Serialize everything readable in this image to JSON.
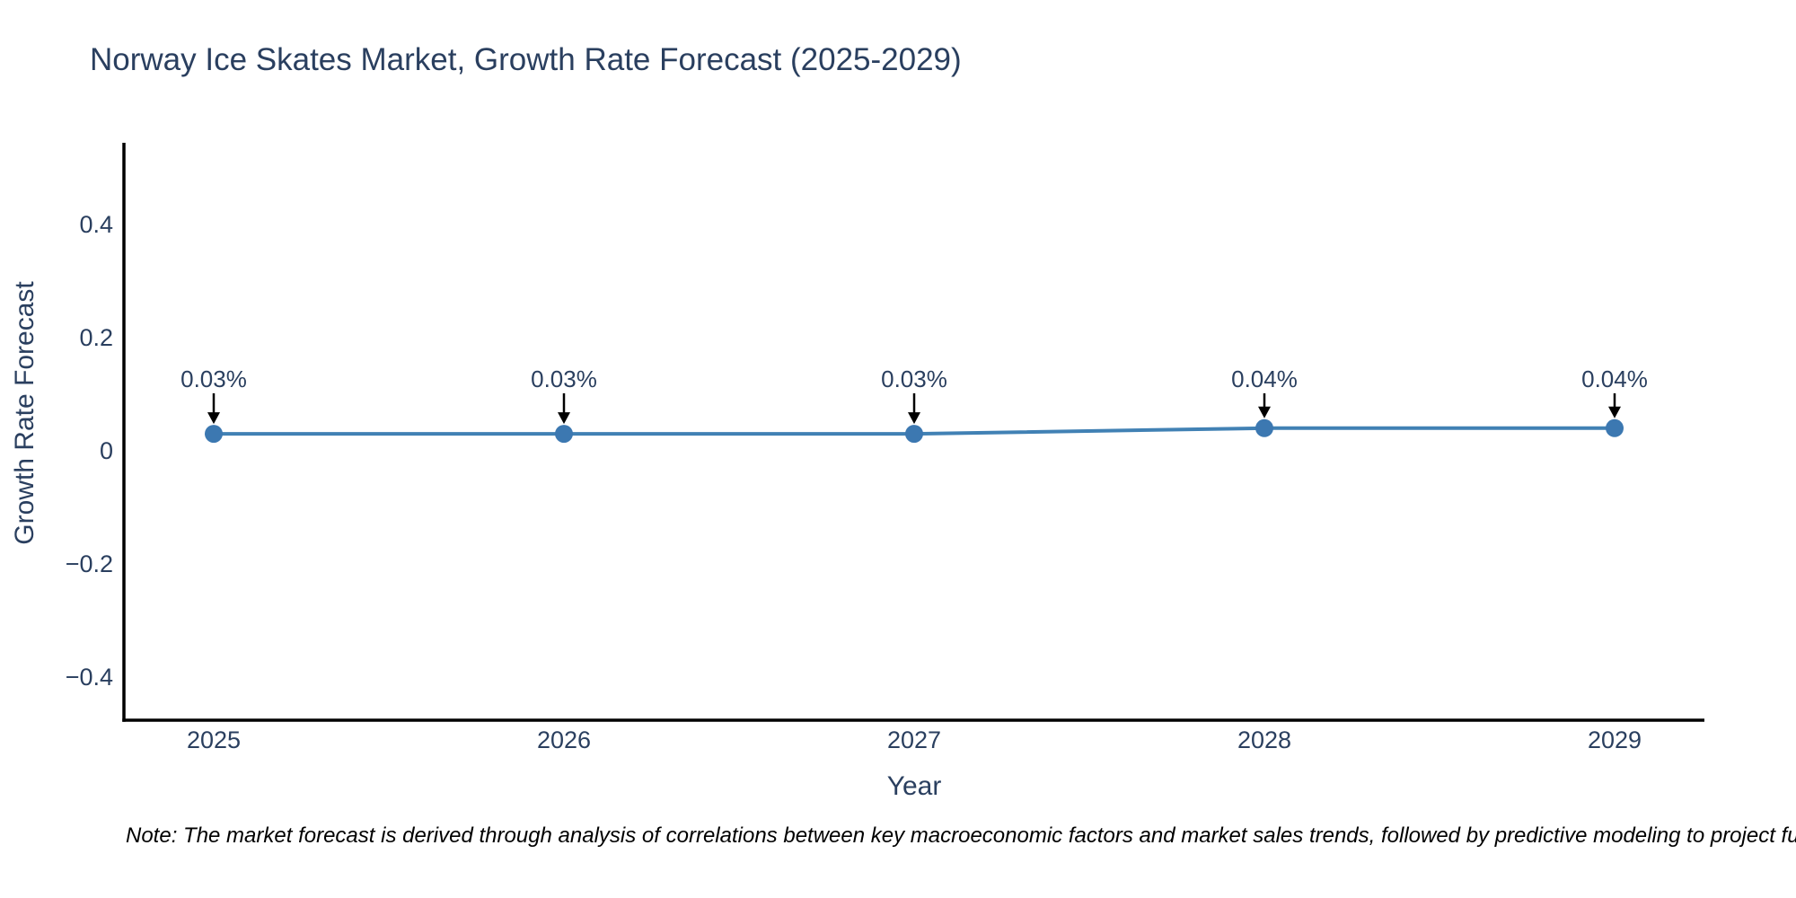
{
  "colors": {
    "text": "#2a3f5f",
    "axis_line": "#000000",
    "series_line": "#4181b4",
    "marker_fill": "#3c78b1",
    "arrow": "#000000",
    "note_text": "#000000",
    "background": "#ffffff"
  },
  "note": "Note: The market forecast is derived through analysis of correlations between key macroeconomic factors and market sales trends, followed by predictive modeling to project future sa",
  "chart_data": {
    "type": "line",
    "title": "Norway Ice Skates Market, Growth Rate Forecast (2025-2029)",
    "xlabel": "Year",
    "ylabel": "Growth Rate Forecast",
    "x": [
      2025,
      2026,
      2027,
      2028,
      2029
    ],
    "x_tick_labels": [
      "2025",
      "2026",
      "2027",
      "2028",
      "2029"
    ],
    "values": [
      0.03,
      0.03,
      0.03,
      0.04,
      0.04
    ],
    "point_labels": [
      "0.03%",
      "0.03%",
      "0.03%",
      "0.04%",
      "0.04%"
    ],
    "y_ticks": [
      {
        "value": 0.4,
        "label": "0.4"
      },
      {
        "value": 0.2,
        "label": "0.2"
      },
      {
        "value": 0,
        "label": "0"
      },
      {
        "value": -0.2,
        "label": "−0.2"
      },
      {
        "value": -0.4,
        "label": "−0.4"
      }
    ],
    "ylim": [
      -0.476,
      0.544
    ],
    "grid": false,
    "legend": "none",
    "annotation_style": "value label above each point with downward black arrow"
  }
}
